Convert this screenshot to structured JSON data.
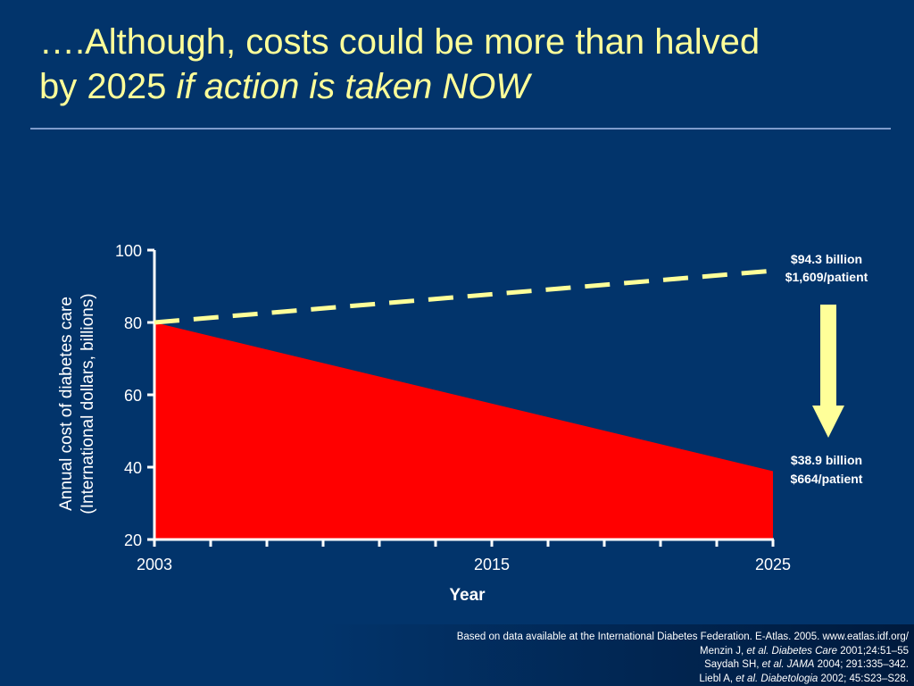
{
  "title": {
    "line1": "….Although, costs could be more than halved",
    "line2_plain": "by 2025 ",
    "line2_italic": "if action is taken NOW"
  },
  "colors": {
    "background": "#02346b",
    "title": "#ffff99",
    "area_fill": "#ff0000",
    "dashed_line": "#ffff99",
    "arrow": "#ffff99",
    "axis": "#ffffff"
  },
  "chart_data": {
    "type": "area",
    "xlabel": "Year",
    "ylabel_line1": "Annual cost of diabetes care",
    "ylabel_line2": "(International dollars, billions)",
    "xlim": [
      2003,
      2025
    ],
    "ylim": [
      20,
      100
    ],
    "x_ticks": [
      2003,
      2015,
      2025
    ],
    "y_ticks": [
      20,
      40,
      60,
      80,
      100
    ],
    "x_minor_ticks": [
      2003,
      2005,
      2007,
      2009,
      2011,
      2013,
      2015,
      2017,
      2019,
      2021,
      2023,
      2025
    ],
    "series": [
      {
        "style": "dashed-line",
        "x": [
          2003,
          2025
        ],
        "values": [
          80,
          94.3
        ]
      },
      {
        "style": "filled-area",
        "x": [
          2003,
          2025
        ],
        "values": [
          80,
          38.9
        ]
      }
    ],
    "annotations": [
      {
        "line1": "$94.3 billion",
        "line2": "$1,609/patient",
        "x": 2025,
        "y": 94.3
      },
      {
        "line1": "$38.9 billion",
        "line2": "$664/patient",
        "x": 2025,
        "y": 38.9
      }
    ],
    "arrow": {
      "direction": "down",
      "from_label": "$94.3 billion",
      "to_label": "$38.9 billion"
    },
    "grid": false,
    "legend": "none"
  },
  "references": {
    "line1": "Based on data available at the International Diabetes Federation. E-Atlas. 2005. www.eatlas.idf.org/",
    "line2_pre": "Menzin J, ",
    "line2_it": "et al. Diabetes Care",
    "line2_post": " 2001;24:51–55",
    "line3_pre": "Saydah SH, ",
    "line3_it": "et al. JAMA",
    "line3_post": " 2004; 291:335–342.",
    "line4_pre": "Liebl A, ",
    "line4_it": "et al. Diabetologia",
    "line4_post": " 2002; 45:S23–S28."
  }
}
